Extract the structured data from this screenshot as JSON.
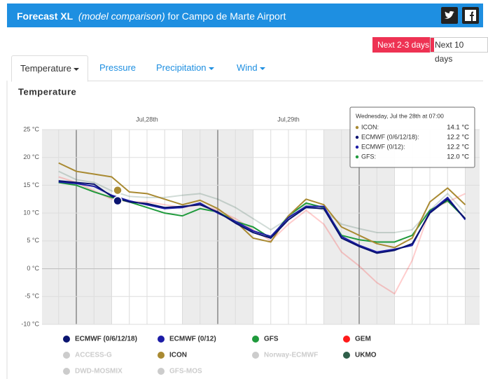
{
  "header": {
    "title": "Forecast XL",
    "subtitle": "(model comparison)",
    "location": "for Campo de Marte Airport"
  },
  "buttons": [
    "Next 2-3 days",
    "Next 10 days"
  ],
  "tabs": [
    "Temperature",
    "Pressure",
    "Precipitation",
    "Wind"
  ],
  "chart_data": {
    "type": "line",
    "title": "Temperature",
    "categories": [
      null,
      null,
      null,
      null,
      null,
      "Jul,28th",
      null,
      null,
      null,
      null,
      null,
      null,
      null,
      "Jul,29th",
      null,
      null,
      null,
      null,
      null,
      null,
      null,
      null,
      null,
      null
    ],
    "ylim": [
      -10,
      25
    ],
    "yticks": [
      {
        "value": 25,
        "label": "25 °C"
      },
      {
        "value": 20,
        "label": "20 °C"
      },
      {
        "value": 15,
        "label": "15 °C"
      },
      {
        "value": 10,
        "label": "10 °C"
      },
      {
        "value": 5,
        "label": "5 °C"
      },
      {
        "value": 0,
        "label": "0 °C"
      },
      {
        "value": -5,
        "label": "-5 °C"
      },
      {
        "value": -10,
        "label": "-10 °C"
      }
    ],
    "grid": true,
    "series": [
      {
        "name": "ECMWF (0/6/12/18)",
        "color": "#0a1470",
        "visible": true,
        "values": [
          15.8,
          15.5,
          15.2,
          13.0,
          12.0,
          11.7,
          11.0,
          11.2,
          11.5,
          10.2,
          8.2,
          6.5,
          5.5,
          8.8,
          11.0,
          10.8,
          5.5,
          4.0,
          2.8,
          3.3,
          4.5,
          10.0,
          12.5,
          9.0
        ]
      },
      {
        "name": "ECMWF (0/12)",
        "color": "#1c1ca6",
        "visible": true,
        "values": [
          15.6,
          15.3,
          14.8,
          13.2,
          12.2,
          11.5,
          10.8,
          11.0,
          11.8,
          10.0,
          8.5,
          6.8,
          5.8,
          9.2,
          11.2,
          11.2,
          5.8,
          4.2,
          3.0,
          3.5,
          4.2,
          10.2,
          12.8,
          8.8
        ]
      },
      {
        "name": "GFS",
        "color": "#1f9a3c",
        "visible": true,
        "values": [
          15.5,
          15.0,
          13.8,
          12.8,
          12.0,
          11.0,
          10.0,
          9.5,
          10.8,
          10.2,
          8.5,
          7.5,
          5.5,
          9.5,
          11.8,
          11.0,
          6.0,
          5.2,
          4.8,
          4.8,
          6.0,
          10.5,
          12.2,
          9.0
        ]
      },
      {
        "name": "GEM",
        "color": "#ff1a1a",
        "visible": true,
        "faded": true,
        "values": [
          16.5,
          15.5,
          14.0,
          12.5,
          12.0,
          12.0,
          11.5,
          11.0,
          11.5,
          10.5,
          9.0,
          7.0,
          5.0,
          8.0,
          10.5,
          8.0,
          3.0,
          0.5,
          -2.5,
          -4.5,
          1.5,
          10.5,
          12.0,
          13.5
        ]
      },
      {
        "name": "ACCESS-G",
        "color": "#cccccc",
        "visible": false,
        "values": [
          null,
          null,
          null,
          null,
          null,
          null,
          null,
          null,
          null,
          null,
          null,
          null,
          null,
          null,
          null,
          null,
          null,
          null,
          null,
          null,
          null,
          null,
          null,
          null
        ]
      },
      {
        "name": "ICON",
        "color": "#a98a32",
        "visible": true,
        "values": [
          19.0,
          17.5,
          17.0,
          16.5,
          13.8,
          13.5,
          12.5,
          11.5,
          12.3,
          10.8,
          8.5,
          5.5,
          4.8,
          9.5,
          12.5,
          11.5,
          7.5,
          6.0,
          4.5,
          3.8,
          5.5,
          12.0,
          14.5,
          11.5
        ]
      },
      {
        "name": "Norway-ECMWF",
        "color": "#cccccc",
        "visible": false,
        "values": [
          null,
          null,
          null,
          null,
          null,
          null,
          null,
          null,
          null,
          null,
          null,
          null,
          null,
          null,
          null,
          null,
          null,
          null,
          null,
          null,
          null,
          null,
          null,
          null
        ]
      },
      {
        "name": "UKMO",
        "color": "#2f5f4a",
        "visible": true,
        "faded": true,
        "values": [
          17.5,
          16.0,
          15.5,
          14.0,
          13.0,
          12.8,
          12.8,
          13.2,
          13.5,
          12.5,
          11.0,
          9.0,
          7.0,
          9.0,
          11.5,
          10.5,
          8.0,
          7.2,
          6.5,
          6.5,
          7.0,
          10.5,
          13.5,
          10.0
        ]
      },
      {
        "name": "DWD-MOSMIX",
        "color": "#cccccc",
        "visible": false,
        "values": [
          null,
          null,
          null,
          null,
          null,
          null,
          null,
          null,
          null,
          null,
          null,
          null,
          null,
          null,
          null,
          null,
          null,
          null,
          null,
          null,
          null,
          null,
          null,
          null
        ]
      },
      {
        "name": "GFS-MOS",
        "color": "#cccccc",
        "visible": false,
        "values": [
          null,
          null,
          null,
          null,
          null,
          null,
          null,
          null,
          null,
          null,
          null,
          null,
          null,
          null,
          null,
          null,
          null,
          null,
          null,
          null,
          null,
          null,
          null,
          null
        ]
      }
    ]
  },
  "tooltip": {
    "title": "Wednesday, Jul the 28th at 07:00",
    "rows": [
      {
        "name": "ICON:",
        "value": 14.1,
        "label": "14.1 °C",
        "color": "#a98a32"
      },
      {
        "name": "ECMWF (0/6/12/18):",
        "value": 12.2,
        "label": "12.2 °C",
        "color": "#0a1470"
      },
      {
        "name": "ECMWF (0/12):",
        "value": 12.2,
        "label": "12.2 °C",
        "color": "#1c1ca6"
      },
      {
        "name": "GFS:",
        "value": 12.0,
        "label": "12.0 °C",
        "color": "#1f9a3c"
      }
    ]
  }
}
